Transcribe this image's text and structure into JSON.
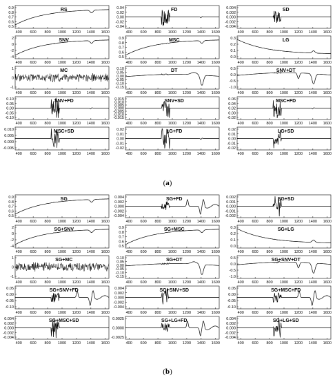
{
  "figure": {
    "captions": [
      "(a)",
      "(b)"
    ]
  },
  "chart_data": [
    {
      "type": "line",
      "title": "RS",
      "series": [
        {
          "values": []
        }
      ],
      "shape": "rs",
      "xlim": [
        350,
        1650
      ],
      "xticks": [
        400,
        600,
        800,
        1000,
        1200,
        1400,
        1600
      ],
      "ylim": [
        0.5,
        0.9
      ],
      "yticks": [
        "0.9",
        "0.8",
        "0.7",
        "0.6",
        "0.5"
      ]
    },
    {
      "type": "line",
      "title": "FD",
      "series": [
        {
          "values": []
        }
      ],
      "shape": "fd",
      "xlim": [
        350,
        1650
      ],
      "xticks": [
        400,
        600,
        800,
        1000,
        1200,
        1400,
        1600
      ],
      "ylim": [
        -0.04,
        0.04
      ],
      "yticks": [
        "0.04",
        "0.02",
        "0.00",
        "-0.02",
        "-0.04"
      ]
    },
    {
      "type": "line",
      "title": "SD",
      "series": [
        {
          "values": []
        }
      ],
      "shape": "sd",
      "xlim": [
        350,
        1650
      ],
      "xticks": [
        400,
        600,
        800,
        1000,
        1200,
        1400,
        1600
      ],
      "ylim": [
        -0.004,
        0.004
      ],
      "yticks": [
        "0.004",
        "0.002",
        "0.000",
        "-0.002",
        "-0.004"
      ]
    },
    {
      "type": "line",
      "title": "SNV",
      "series": [
        {
          "values": []
        }
      ],
      "shape": "rs",
      "xlim": [
        350,
        1650
      ],
      "xticks": [
        400,
        600,
        800,
        1000,
        1200,
        1400,
        1600
      ],
      "ylim": [
        -4,
        2
      ],
      "yticks": [
        "2",
        "0",
        "-2",
        "-4"
      ]
    },
    {
      "type": "line",
      "title": "MSC",
      "series": [
        {
          "values": []
        }
      ],
      "shape": "rs",
      "xlim": [
        350,
        1650
      ],
      "xticks": [
        400,
        600,
        800,
        1000,
        1200,
        1400,
        1600
      ],
      "ylim": [
        0.5,
        0.9
      ],
      "yticks": [
        "0.9",
        "0.8",
        "0.7",
        "0.6",
        "0.5"
      ]
    },
    {
      "type": "line",
      "title": "LG",
      "series": [
        {
          "values": []
        }
      ],
      "shape": "lg",
      "xlim": [
        350,
        1650
      ],
      "xticks": [
        400,
        600,
        800,
        1000,
        1200,
        1400,
        1600
      ],
      "ylim": [
        0,
        0.3
      ],
      "yticks": [
        "0.3",
        "0.2",
        "0.1",
        "0.0"
      ]
    },
    {
      "type": "line",
      "title": "MC",
      "series": [
        {
          "values": []
        }
      ],
      "shape": "mc",
      "xlim": [
        350,
        1650
      ],
      "xticks": [
        400,
        600,
        800,
        1000,
        1200,
        1400,
        1600
      ],
      "ylim": [
        -1,
        1
      ],
      "yticks": [
        "1",
        "0",
        "-1"
      ]
    },
    {
      "type": "line",
      "title": "DT",
      "series": [
        {
          "values": []
        }
      ],
      "shape": "dt",
      "xlim": [
        350,
        1650
      ],
      "xticks": [
        400,
        600,
        800,
        1000,
        1200,
        1400,
        1600
      ],
      "ylim": [
        -0.15,
        0.1
      ],
      "yticks": [
        "0.10",
        "0.05",
        "0.00",
        "-0.05",
        "-0.10",
        "-0.15"
      ]
    },
    {
      "type": "line",
      "title": "SNV+DT",
      "series": [
        {
          "values": []
        }
      ],
      "shape": "dt2",
      "xlim": [
        350,
        1650
      ],
      "xticks": [
        400,
        600,
        800,
        1000,
        1200,
        1400,
        1600
      ],
      "ylim": [
        -1,
        0.5
      ],
      "yticks": [
        "0.5",
        "0.0",
        "-0.5",
        "-1.0"
      ]
    },
    {
      "type": "line",
      "title": "SNV+FD",
      "series": [
        {
          "values": []
        }
      ],
      "shape": "fd",
      "xlim": [
        350,
        1650
      ],
      "xticks": [
        400,
        600,
        800,
        1000,
        1200,
        1400,
        1600
      ],
      "ylim": [
        -0.1,
        0.1
      ],
      "yticks": [
        "0.10",
        "0.05",
        "0.00",
        "-0.05",
        "-0.10"
      ]
    },
    {
      "type": "line",
      "title": "SNV+SD",
      "series": [
        {
          "values": []
        }
      ],
      "shape": "sd",
      "xlim": [
        350,
        1650
      ],
      "xticks": [
        400,
        600,
        800,
        1000,
        1200,
        1400,
        1600
      ],
      "ylim": [
        -0.015,
        0.015
      ],
      "yticks": [
        "0.015",
        "0.010",
        "0.005",
        "0.000",
        "-0.005",
        "-0.010",
        "-0.015"
      ]
    },
    {
      "type": "line",
      "title": "MSC+FD",
      "series": [
        {
          "values": []
        }
      ],
      "shape": "fd",
      "xlim": [
        350,
        1650
      ],
      "xticks": [
        400,
        600,
        800,
        1000,
        1200,
        1400,
        1600
      ],
      "ylim": [
        -0.02,
        0.06
      ],
      "yticks": [
        "0.06",
        "0.04",
        "0.02",
        "0.00",
        "-0.02"
      ]
    },
    {
      "type": "line",
      "title": "MSC+SD",
      "series": [
        {
          "values": []
        }
      ],
      "shape": "sd",
      "xlim": [
        350,
        1650
      ],
      "xticks": [
        400,
        600,
        800,
        1000,
        1200,
        1400,
        1600
      ],
      "ylim": [
        -0.005,
        0.01
      ],
      "yticks": [
        "0.010",
        "0.005",
        "0.000",
        "-0.005"
      ]
    },
    {
      "type": "line",
      "title": "LG+FD",
      "series": [
        {
          "values": []
        }
      ],
      "shape": "fd",
      "xlim": [
        350,
        1650
      ],
      "xticks": [
        400,
        600,
        800,
        1000,
        1200,
        1400,
        1600
      ],
      "ylim": [
        -0.02,
        0.02
      ],
      "yticks": [
        "0.02",
        "0.01",
        "0.00",
        "-0.01",
        "-0.02"
      ]
    },
    {
      "type": "line",
      "title": "LG+SD",
      "series": [
        {
          "values": []
        }
      ],
      "shape": "sd",
      "xlim": [
        350,
        1650
      ],
      "xticks": [
        400,
        600,
        800,
        1000,
        1200,
        1400,
        1600
      ],
      "ylim": [
        -0.02,
        0.02
      ],
      "yticks": [
        "0.02",
        "0.01",
        "0.00",
        "-0.01",
        "-0.02"
      ]
    },
    {
      "type": "line",
      "title": "SG",
      "series": [
        {
          "values": []
        }
      ],
      "shape": "rs",
      "xlim": [
        350,
        1650
      ],
      "xticks": [
        400,
        600,
        800,
        1000,
        1200,
        1400,
        1600
      ],
      "ylim": [
        0.5,
        0.9
      ],
      "yticks": [
        "0.9",
        "0.8",
        "0.7",
        "0.6",
        "0.5"
      ]
    },
    {
      "type": "line",
      "title": "SG+FD",
      "series": [
        {
          "values": []
        }
      ],
      "shape": "sgfd",
      "xlim": [
        350,
        1650
      ],
      "xticks": [
        400,
        600,
        800,
        1000,
        1200,
        1400,
        1600
      ],
      "ylim": [
        -0.004,
        0.004
      ],
      "yticks": [
        "0.004",
        "0.002",
        "0.000",
        "-0.002",
        "-0.004"
      ]
    },
    {
      "type": "line",
      "title": "SG+SD",
      "series": [
        {
          "values": []
        }
      ],
      "shape": "sd",
      "xlim": [
        350,
        1650
      ],
      "xticks": [
        400,
        600,
        800,
        1000,
        1200,
        1400,
        1600
      ],
      "ylim": [
        -0.002,
        0.002
      ],
      "yticks": [
        "0.002",
        "0.001",
        "0.000",
        "-0.001",
        "-0.002"
      ]
    },
    {
      "type": "line",
      "title": "SG+SNV",
      "series": [
        {
          "values": []
        }
      ],
      "shape": "rs",
      "xlim": [
        350,
        1650
      ],
      "xticks": [
        400,
        600,
        800,
        1000,
        1200,
        1400,
        1600
      ],
      "ylim": [
        -4,
        2
      ],
      "yticks": [
        "2",
        "0",
        "-2",
        "-4"
      ]
    },
    {
      "type": "line",
      "title": "SG+MSC",
      "series": [
        {
          "values": []
        }
      ],
      "shape": "rs",
      "xlim": [
        350,
        1650
      ],
      "xticks": [
        400,
        600,
        800,
        1000,
        1200,
        1400,
        1600
      ],
      "ylim": [
        0.5,
        0.9
      ],
      "yticks": [
        "0.9",
        "0.8",
        "0.7",
        "0.6",
        "0.5"
      ]
    },
    {
      "type": "line",
      "title": "SG+LG",
      "series": [
        {
          "values": []
        }
      ],
      "shape": "lg",
      "xlim": [
        350,
        1650
      ],
      "xticks": [
        400,
        600,
        800,
        1000,
        1200,
        1400,
        1600
      ],
      "ylim": [
        0,
        0.3
      ],
      "yticks": [
        "0.3",
        "0.2",
        "0.1",
        "0.0"
      ]
    },
    {
      "type": "line",
      "title": "SG+MC",
      "series": [
        {
          "values": []
        }
      ],
      "shape": "mc",
      "xlim": [
        350,
        1650
      ],
      "xticks": [
        400,
        600,
        800,
        1000,
        1200,
        1400,
        1600
      ],
      "ylim": [
        -1,
        1
      ],
      "yticks": [
        "1",
        "0",
        "-1"
      ]
    },
    {
      "type": "line",
      "title": "SG+DT",
      "series": [
        {
          "values": []
        }
      ],
      "shape": "dt",
      "xlim": [
        350,
        1650
      ],
      "xticks": [
        400,
        600,
        800,
        1000,
        1200,
        1400,
        1600
      ],
      "ylim": [
        -0.15,
        0.1
      ],
      "yticks": [
        "0.10",
        "0.05",
        "0.00",
        "-0.05",
        "-0.10",
        "-0.15"
      ]
    },
    {
      "type": "line",
      "title": "SG+SNV+DT",
      "series": [
        {
          "values": []
        }
      ],
      "shape": "dt2",
      "xlim": [
        350,
        1650
      ],
      "xticks": [
        400,
        600,
        800,
        1000,
        1200,
        1400,
        1600
      ],
      "ylim": [
        -1,
        0.5
      ],
      "yticks": [
        "0.5",
        "0.0",
        "-0.5",
        "-1.0"
      ]
    },
    {
      "type": "line",
      "title": "SG+SNV+FD",
      "series": [
        {
          "values": []
        }
      ],
      "shape": "sgfd",
      "xlim": [
        350,
        1650
      ],
      "xticks": [
        400,
        600,
        800,
        1000,
        1200,
        1400,
        1600
      ],
      "ylim": [
        -0.1,
        0.05
      ],
      "yticks": [
        "0.05",
        "0.00",
        "-0.05",
        "-0.10"
      ]
    },
    {
      "type": "line",
      "title": "SG+SNV+SD",
      "series": [
        {
          "values": []
        }
      ],
      "shape": "sd",
      "xlim": [
        350,
        1650
      ],
      "xticks": [
        400,
        600,
        800,
        1000,
        1200,
        1400,
        1600
      ],
      "ylim": [
        -0.004,
        0.004
      ],
      "yticks": [
        "0.004",
        "0.002",
        "0.000",
        "-0.002",
        "-0.004"
      ]
    },
    {
      "type": "line",
      "title": "SG+MSC+FD",
      "series": [
        {
          "values": []
        }
      ],
      "shape": "sgfd",
      "xlim": [
        350,
        1650
      ],
      "xticks": [
        400,
        600,
        800,
        1000,
        1200,
        1400,
        1600
      ],
      "ylim": [
        -0.1,
        0.05
      ],
      "yticks": [
        "0.05",
        "0.00",
        "-0.05",
        "-0.10"
      ]
    },
    {
      "type": "line",
      "title": "SG+MSC+SD",
      "series": [
        {
          "values": []
        }
      ],
      "shape": "sd",
      "xlim": [
        350,
        1650
      ],
      "xticks": [
        400,
        600,
        800,
        1000,
        1200,
        1400,
        1600
      ],
      "ylim": [
        -0.004,
        0.004
      ],
      "yticks": [
        "0.004",
        "0.002",
        "0.000",
        "-0.002",
        "-0.004"
      ]
    },
    {
      "type": "line",
      "title": "SG+LG+FD",
      "series": [
        {
          "values": []
        }
      ],
      "shape": "sgfd",
      "xlim": [
        350,
        1650
      ],
      "xticks": [
        400,
        600,
        800,
        1000,
        1200,
        1400,
        1600
      ],
      "ylim": [
        -0.0025,
        0.0025
      ],
      "yticks": [
        "0.0025",
        "0.0000",
        "-0.0025"
      ]
    },
    {
      "type": "line",
      "title": "SG+LG+SD",
      "series": [
        {
          "values": []
        }
      ],
      "shape": "sd",
      "xlim": [
        350,
        1650
      ],
      "xticks": [
        400,
        600,
        800,
        1000,
        1200,
        1400,
        1600
      ],
      "ylim": [
        -0.004,
        0.004
      ],
      "yticks": [
        "0.004",
        "0.002",
        "0.000",
        "-0.002",
        "-0.004"
      ]
    }
  ]
}
